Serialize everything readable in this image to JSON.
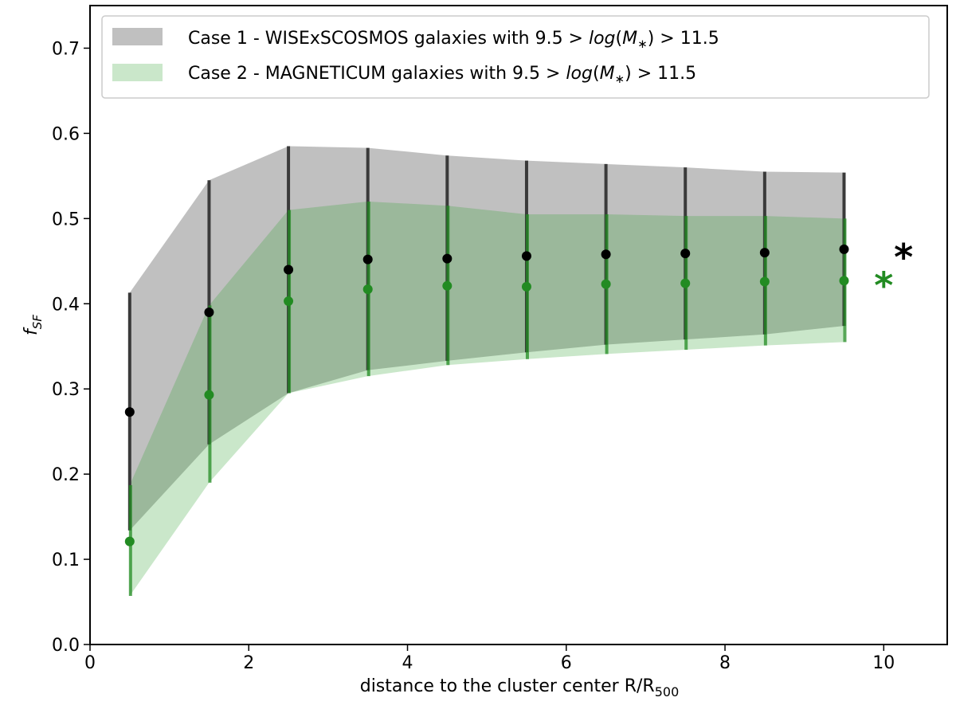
{
  "chart_data": {
    "type": "scatter",
    "xlabel": "distance to the cluster center R/R",
    "xlabel_sub": "500",
    "ylabel": "f",
    "ylabel_sub": "SF",
    "xlim": [
      0,
      10.8
    ],
    "ylim": [
      0,
      0.75
    ],
    "xticks": [
      0,
      2,
      4,
      6,
      8,
      10
    ],
    "yticks": [
      0.0,
      0.1,
      0.2,
      0.3,
      0.4,
      0.5,
      0.6,
      0.7
    ],
    "legend_position": "top",
    "series": [
      {
        "name": "Case 1 - WISExSCOSMOS galaxies with  9.5 > log(M*) > 11.5",
        "legend_prefix": "Case 1 - WISExSCOSMOS galaxies with  9.5 > ",
        "legend_suffix": " > 11.5",
        "color": "#000000",
        "err_color": "#3a3a3a",
        "band_color": "#9e9e9e",
        "band_opacity": 0.65,
        "x": [
          0.5,
          1.5,
          2.5,
          3.5,
          4.5,
          5.5,
          6.5,
          7.5,
          8.5,
          9.5
        ],
        "y": [
          0.273,
          0.39,
          0.44,
          0.452,
          0.453,
          0.456,
          0.458,
          0.459,
          0.46,
          0.464
        ],
        "upper": [
          0.413,
          0.545,
          0.585,
          0.583,
          0.574,
          0.568,
          0.564,
          0.56,
          0.555,
          0.554
        ],
        "lower": [
          0.134,
          0.235,
          0.295,
          0.322,
          0.333,
          0.343,
          0.352,
          0.358,
          0.364,
          0.374
        ],
        "marker_total": {
          "x": 10.25,
          "y": 0.46,
          "symbol": "*"
        }
      },
      {
        "name": "Case 2 - MAGNETICUM galaxies with 9.5 > log(M*) > 11.5",
        "legend_prefix": "Case 2 - MAGNETICUM galaxies with 9.5 > ",
        "legend_suffix": " > 11.5",
        "color": "#228b22",
        "err_color": "#228b22",
        "band_color": "#2ca02c",
        "band_opacity": 0.25,
        "x": [
          0.5,
          1.5,
          2.5,
          3.5,
          4.5,
          5.5,
          6.5,
          7.5,
          8.5,
          9.5
        ],
        "y": [
          0.121,
          0.293,
          0.403,
          0.417,
          0.421,
          0.42,
          0.423,
          0.424,
          0.426,
          0.427
        ],
        "upper": [
          0.187,
          0.398,
          0.51,
          0.52,
          0.515,
          0.505,
          0.505,
          0.503,
          0.503,
          0.5
        ],
        "lower": [
          0.057,
          0.19,
          0.295,
          0.315,
          0.328,
          0.335,
          0.341,
          0.346,
          0.351,
          0.355
        ],
        "marker_total": {
          "x": 10.0,
          "y": 0.427,
          "symbol": "*"
        }
      }
    ]
  }
}
